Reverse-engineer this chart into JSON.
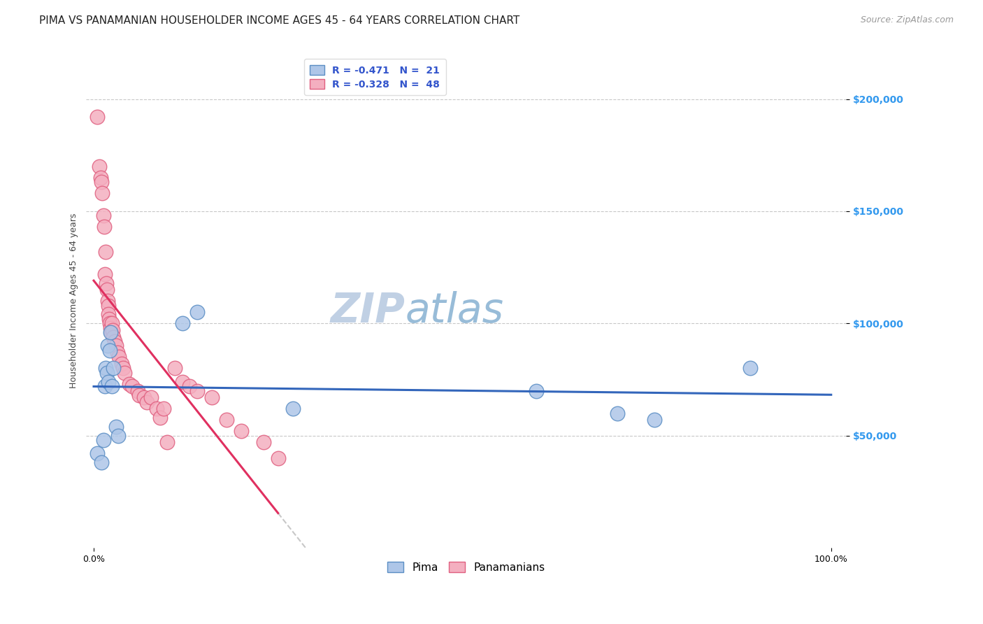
{
  "title": "PIMA VS PANAMANIAN HOUSEHOLDER INCOME AGES 45 - 64 YEARS CORRELATION CHART",
  "source": "Source: ZipAtlas.com",
  "ylabel": "Householder Income Ages 45 - 64 years",
  "ytick_values": [
    50000,
    100000,
    150000,
    200000
  ],
  "ylim": [
    0,
    220000
  ],
  "xlim": [
    -0.01,
    1.02
  ],
  "watermark_zip": "ZIP",
  "watermark_atlas": "atlas",
  "legend_pima": "R = -0.471   N =  21",
  "legend_panama": "R = -0.328   N =  48",
  "pima_color": "#aec6e8",
  "panama_color": "#f4afc0",
  "pima_edge_color": "#5b8ec4",
  "panama_edge_color": "#e06080",
  "trendline_pima_color": "#3366bb",
  "trendline_panama_color": "#e03060",
  "trendline_ext_color": "#c8c8c8",
  "pima_x": [
    0.005,
    0.01,
    0.013,
    0.015,
    0.016,
    0.018,
    0.019,
    0.02,
    0.022,
    0.023,
    0.025,
    0.027,
    0.03,
    0.033,
    0.12,
    0.14,
    0.27,
    0.6,
    0.71,
    0.76,
    0.89
  ],
  "pima_y": [
    42000,
    38000,
    48000,
    72000,
    80000,
    78000,
    90000,
    74000,
    88000,
    96000,
    72000,
    80000,
    54000,
    50000,
    100000,
    105000,
    62000,
    70000,
    60000,
    57000,
    80000
  ],
  "panama_x": [
    0.005,
    0.008,
    0.009,
    0.01,
    0.011,
    0.013,
    0.014,
    0.015,
    0.016,
    0.017,
    0.018,
    0.019,
    0.02,
    0.02,
    0.021,
    0.022,
    0.023,
    0.024,
    0.025,
    0.026,
    0.027,
    0.028,
    0.03,
    0.032,
    0.034,
    0.038,
    0.04,
    0.042,
    0.048,
    0.052,
    0.06,
    0.062,
    0.068,
    0.072,
    0.078,
    0.085,
    0.09,
    0.095,
    0.1,
    0.11,
    0.12,
    0.13,
    0.14,
    0.16,
    0.18,
    0.2,
    0.23,
    0.25
  ],
  "panama_y": [
    192000,
    170000,
    165000,
    163000,
    158000,
    148000,
    143000,
    122000,
    132000,
    118000,
    115000,
    110000,
    108000,
    104000,
    102000,
    100000,
    98000,
    96000,
    100000,
    97000,
    94000,
    92000,
    90000,
    87000,
    85000,
    82000,
    80000,
    78000,
    73000,
    72000,
    70000,
    68000,
    67000,
    65000,
    67000,
    62000,
    58000,
    62000,
    47000,
    80000,
    74000,
    72000,
    70000,
    67000,
    57000,
    52000,
    47000,
    40000
  ],
  "background_color": "#ffffff",
  "grid_color": "#c8c8c8",
  "title_fontsize": 11,
  "axis_label_fontsize": 9,
  "tick_fontsize": 9,
  "legend_fontsize": 10,
  "watermark_zip_fontsize": 42,
  "watermark_atlas_fontsize": 42,
  "watermark_zip_color": "#c0d0e4",
  "watermark_atlas_color": "#98bcd8",
  "source_fontsize": 9
}
